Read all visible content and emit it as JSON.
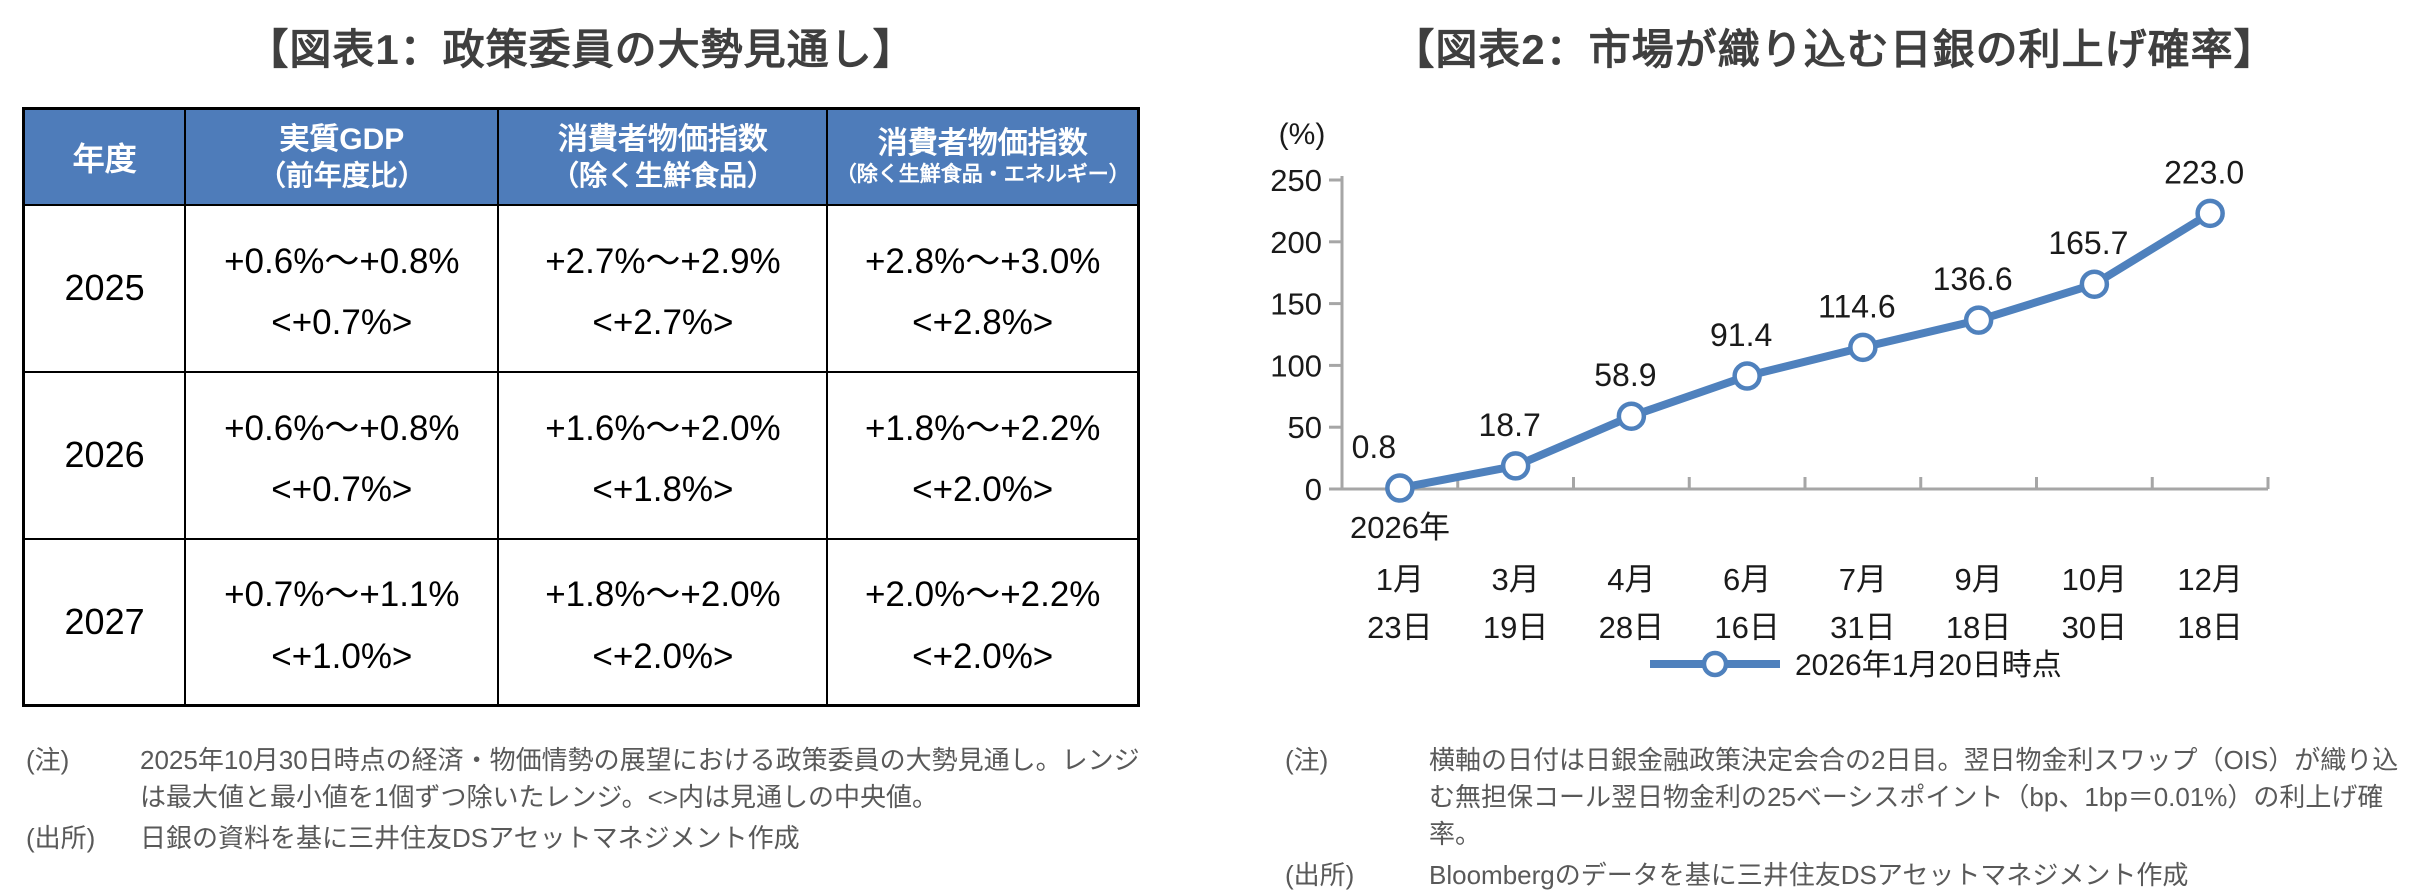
{
  "figure1": {
    "title": "【図表1：政策委員の大勢見通し】",
    "notes": {
      "note_label": "(注)",
      "note_text": "2025年10月30日時点の経済・物価情勢の展望における政策委員の大勢見通し。レンジは最大値と最小値を1個ずつ除いたレンジ。<>内は見通しの中央値。",
      "source_label": "(出所)",
      "source_text": "日銀の資料を基に三井住友DSアセットマネジメント作成"
    },
    "header_color": "#4e7cba"
  },
  "figure2": {
    "title": "【図表2：市場が織り込む日銀の利上げ確率】",
    "notes": {
      "note_label": "(注)",
      "note_text": "横軸の日付は日銀金融政策決定会合の2日目。翌日物金利スワップ（OIS）が織り込む無担保コール翌日物金利の25ベーシスポイント（bp、1bp＝0.01%）の利上げ確率。",
      "source_label": "(出所)",
      "source_text": "Bloombergのデータを基に三井住友DSアセットマネジメント作成"
    }
  },
  "chart_data": [
    {
      "type": "table",
      "title": "【図表1：政策委員の大勢見通し】",
      "columns": [
        {
          "title": "年度",
          "sub": ""
        },
        {
          "title": "実質GDP",
          "sub": "（前年度比）"
        },
        {
          "title": "消費者物価指数",
          "sub": "（除く生鮮食品）"
        },
        {
          "title": "消費者物価指数",
          "sub": "（除く生鮮食品・エネルギー）"
        }
      ],
      "rows": [
        [
          "2025",
          "+0.6%～+0.8%",
          "<+0.7%>",
          "+2.7%～+2.9%",
          "<+2.7%>",
          "+2.8%～+3.0%",
          "<+2.8%>"
        ],
        [
          "2026",
          "+0.6%～+0.8%",
          "<+0.7%>",
          "+1.6%～+2.0%",
          "<+1.8%>",
          "+1.8%～+2.2%",
          "<+2.0%>"
        ],
        [
          "2027",
          "+0.7%～+1.1%",
          "<+1.0%>",
          "+1.8%～+2.0%",
          "<+2.0%>",
          "+2.0%～+2.2%",
          "<+2.0%>"
        ]
      ]
    },
    {
      "type": "line",
      "title": "【図表2：市場が織り込む日銀の利上げ確率】",
      "unit_label": "(%)",
      "ylim": [
        0,
        250
      ],
      "ytick_step": 50,
      "grid": false,
      "legend_position": "bottom",
      "x_year_label": "2026年",
      "categories": [
        {
          "month": "1月",
          "day": "23日"
        },
        {
          "month": "3月",
          "day": "19日"
        },
        {
          "month": "4月",
          "day": "28日"
        },
        {
          "month": "6月",
          "day": "16日"
        },
        {
          "month": "7月",
          "day": "31日"
        },
        {
          "month": "9月",
          "day": "18日"
        },
        {
          "month": "10月",
          "day": "30日"
        },
        {
          "month": "12月",
          "day": "18日"
        }
      ],
      "series": [
        {
          "name": "2026年1月20日時点",
          "color": "#4f81bd",
          "values": [
            0.8,
            18.7,
            58.9,
            91.4,
            114.6,
            136.6,
            165.7,
            223.0
          ]
        }
      ]
    }
  ]
}
